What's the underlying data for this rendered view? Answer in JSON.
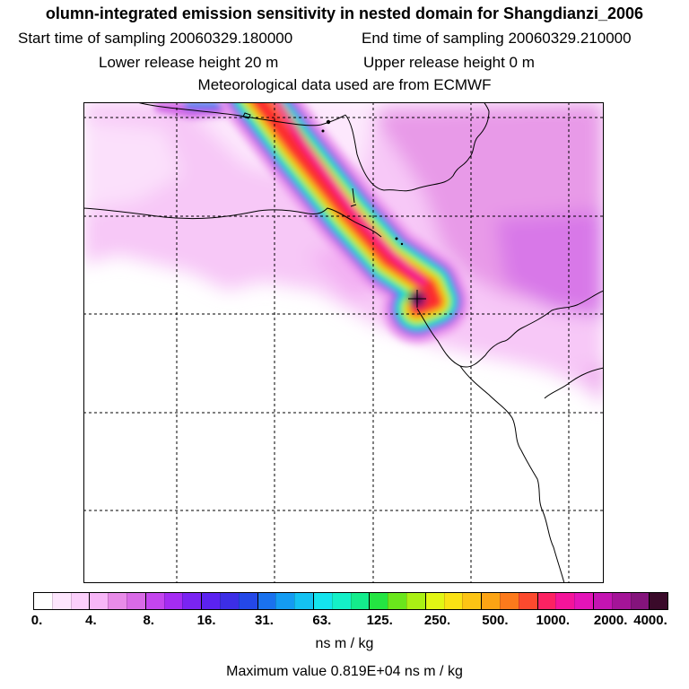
{
  "title": {
    "line1": "olumn-integrated emission sensitivity in nested domain for Shangdianzi_2006",
    "start_time": "Start time of sampling 20060329.180000",
    "end_time": "End time of sampling 20060329.210000",
    "lower_release": "Lower release height   20 m",
    "upper_release": "Upper release height    0 m",
    "met_data": "Meteorological data used are from ECMWF"
  },
  "legend": {
    "ticks": [
      "0.",
      "4.",
      "8.",
      "16.",
      "31.",
      "63.",
      "125.",
      "250.",
      "500.",
      "1000.",
      "2000.",
      "4000."
    ],
    "colors": [
      "#ffffff",
      "#fde6fd",
      "#fbcffb",
      "#f7b6f7",
      "#e88be8",
      "#d96ae6",
      "#c445ee",
      "#a52cf2",
      "#7a24f2",
      "#5b22f0",
      "#3c2ee6",
      "#2448e8",
      "#1a72ee",
      "#149cf2",
      "#14c2f2",
      "#14e4ee",
      "#14f0c8",
      "#14ec8c",
      "#24e442",
      "#6ae61c",
      "#aaf014",
      "#e2f614",
      "#fae214",
      "#fcc414",
      "#fca414",
      "#fc7a1c",
      "#fc4a2e",
      "#fc2262",
      "#f4149a",
      "#e414b8",
      "#c414b2",
      "#a41498",
      "#84147c",
      "#3a0a2a"
    ],
    "units": "ns m / kg",
    "max_value": "Maximum value  0.819E+04 ns m / kg"
  }
}
